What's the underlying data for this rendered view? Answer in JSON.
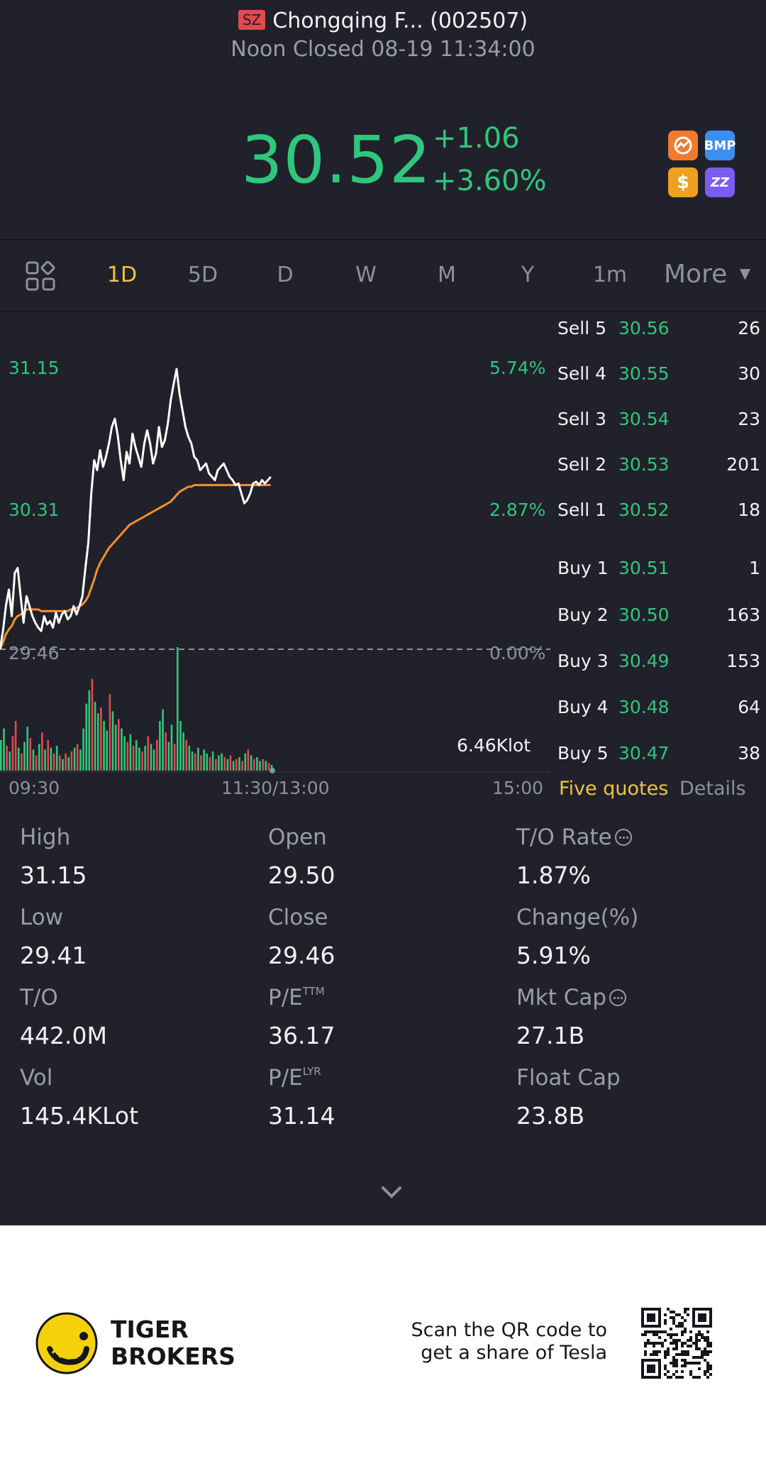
{
  "header": {
    "exchange_badge": "SZ",
    "title": "Chongqing F... (002507)",
    "status": "Noon Closed 08-19 11:34:00"
  },
  "quote": {
    "price": "30.52",
    "change": "+1.06",
    "change_pct": "+3.60%",
    "color_up": "#2fc77b",
    "badges": [
      {
        "name": "trend-badge-icon",
        "label": "",
        "color": "#f07a2e"
      },
      {
        "name": "bmp-badge-icon",
        "label": "BMP",
        "color": "#3b8ff0"
      },
      {
        "name": "dollar-badge-icon",
        "label": "$",
        "color": "#f0a020"
      },
      {
        "name": "zz-badge-icon",
        "label": "ZZ",
        "color": "#7b5cf0"
      }
    ]
  },
  "tabs": {
    "items": [
      "1D",
      "5D",
      "D",
      "W",
      "M",
      "Y",
      "1m"
    ],
    "more": "More",
    "active": "1D",
    "active_color": "#f0c33c"
  },
  "chart": {
    "y_left_top": "31.15",
    "y_left_mid": "30.31",
    "y_left_base": "29.46",
    "y_right_top": "5.74%",
    "y_right_mid": "2.87%",
    "y_right_base": "0.00%",
    "volume_label": "6.46Klot",
    "time_start": "09:30",
    "time_mid": "11:30/13:00",
    "time_end": "15:00"
  },
  "chart_data": {
    "type": "line",
    "title": "",
    "xlabel": "",
    "ylabel": "",
    "x_ticks": [
      "09:30",
      "11:30/13:00",
      "15:00"
    ],
    "ylim": [
      29.46,
      31.15
    ],
    "y_ticks": [
      29.46,
      30.31,
      31.15
    ],
    "y2_ticks": [
      "0.00%",
      "2.87%",
      "5.74%"
    ],
    "baseline": 29.46,
    "series": [
      {
        "name": "",
        "color": "#ffffff",
        "values": [
          29.46,
          29.57,
          29.72,
          29.82,
          29.66,
          29.92,
          29.95,
          29.78,
          29.62,
          29.78,
          29.72,
          29.66,
          29.62,
          29.59,
          29.57,
          29.66,
          29.61,
          29.63,
          29.59,
          29.68,
          29.62,
          29.67,
          29.69,
          29.64,
          29.66,
          29.72,
          29.67,
          29.72,
          29.78,
          29.95,
          30.1,
          30.4,
          30.6,
          30.54,
          30.66,
          30.56,
          30.62,
          30.7,
          30.8,
          30.85,
          30.75,
          30.6,
          30.48,
          30.65,
          30.58,
          30.76,
          30.68,
          30.62,
          30.56,
          30.7,
          30.78,
          30.7,
          30.58,
          30.64,
          30.8,
          30.68,
          30.72,
          30.82,
          30.96,
          31.06,
          31.15,
          31.0,
          30.9,
          30.8,
          30.74,
          30.7,
          30.62,
          30.6,
          30.54,
          30.56,
          30.58,
          30.52,
          30.5,
          30.48,
          30.54,
          30.56,
          30.58,
          30.54,
          30.5,
          30.48,
          30.45,
          30.46,
          30.4,
          30.34,
          30.36,
          30.4,
          30.46,
          30.47,
          30.45,
          30.48,
          30.46,
          30.48,
          30.5
        ]
      },
      {
        "name": "",
        "color": "#f5902a",
        "values": [
          29.46,
          29.5,
          29.55,
          29.58,
          29.6,
          29.64,
          29.66,
          29.67,
          29.68,
          29.7,
          29.7,
          29.7,
          29.7,
          29.7,
          29.69,
          29.69,
          29.69,
          29.69,
          29.69,
          29.69,
          29.69,
          29.69,
          29.69,
          29.69,
          29.7,
          29.7,
          29.71,
          29.72,
          29.73,
          29.75,
          29.78,
          29.83,
          29.88,
          29.94,
          29.98,
          30.01,
          30.04,
          30.07,
          30.09,
          30.11,
          30.13,
          30.15,
          30.17,
          30.19,
          30.21,
          30.22,
          30.23,
          30.24,
          30.25,
          30.26,
          30.27,
          30.28,
          30.29,
          30.3,
          30.31,
          30.32,
          30.33,
          30.34,
          30.35,
          30.37,
          30.39,
          30.41,
          30.42,
          30.43,
          30.44,
          30.44,
          30.45,
          30.45,
          30.45,
          30.45,
          30.45,
          30.45,
          30.45,
          30.45,
          30.45,
          30.45,
          30.45,
          30.45,
          30.45,
          30.45,
          30.45,
          30.45,
          30.45,
          30.45,
          30.45,
          30.45,
          30.45,
          30.45,
          30.45,
          30.45,
          30.45,
          30.45,
          30.45
        ]
      }
    ],
    "volume": {
      "unit": "Klot",
      "max": 6.46,
      "values": [
        1.6,
        2.2,
        1.3,
        1.0,
        1.8,
        2.6,
        1.2,
        0.9,
        1.5,
        2.3,
        1.7,
        1.1,
        0.8,
        1.4,
        2.0,
        1.1,
        1.6,
        1.2,
        0.9,
        1.3,
        0.8,
        0.6,
        0.9,
        0.7,
        1.0,
        1.2,
        1.4,
        1.1,
        2.2,
        3.5,
        4.2,
        4.8,
        3.6,
        3.0,
        3.3,
        2.6,
        2.1,
        4.0,
        3.1,
        2.4,
        2.7,
        2.2,
        1.8,
        1.5,
        1.9,
        1.3,
        1.6,
        1.2,
        1.0,
        1.3,
        1.8,
        1.4,
        1.1,
        1.6,
        2.6,
        3.2,
        2.0,
        1.5,
        2.4,
        1.4,
        6.46,
        2.6,
        2.0,
        1.6,
        1.3,
        1.0,
        0.9,
        1.2,
        0.8,
        1.1,
        0.9,
        0.7,
        1.0,
        0.6,
        0.8,
        0.9,
        0.7,
        0.6,
        0.8,
        0.5,
        0.6,
        0.7,
        0.5,
        0.9,
        1.1,
        0.8,
        0.6,
        0.7,
        0.5,
        0.6,
        0.5,
        0.4,
        0.3
      ],
      "colors": [
        "g",
        "g",
        "r",
        "g",
        "r",
        "r",
        "g",
        "r",
        "g",
        "g",
        "r",
        "g",
        "r",
        "g",
        "r",
        "g",
        "r",
        "g",
        "r",
        "g",
        "r",
        "g",
        "r",
        "g",
        "r",
        "g",
        "r",
        "g",
        "g",
        "g",
        "g",
        "r",
        "g",
        "g",
        "r",
        "g",
        "g",
        "r",
        "g",
        "g",
        "r",
        "g",
        "g",
        "r",
        "g",
        "r",
        "g",
        "g",
        "r",
        "g",
        "r",
        "g",
        "g",
        "r",
        "g",
        "g",
        "r",
        "g",
        "g",
        "r",
        "g",
        "g",
        "g",
        "r",
        "g",
        "g",
        "r",
        "g",
        "r",
        "g",
        "g",
        "r",
        "g",
        "r",
        "g",
        "g",
        "r",
        "g",
        "r",
        "g",
        "r",
        "g",
        "r",
        "g",
        "r",
        "g",
        "r",
        "g",
        "g",
        "r",
        "g",
        "r",
        "g"
      ]
    }
  },
  "order_book": {
    "sell": [
      {
        "side": "Sell 5",
        "price": "30.56",
        "qty": "26"
      },
      {
        "side": "Sell 4",
        "price": "30.55",
        "qty": "30"
      },
      {
        "side": "Sell 3",
        "price": "30.54",
        "qty": "23"
      },
      {
        "side": "Sell 2",
        "price": "30.53",
        "qty": "201"
      },
      {
        "side": "Sell 1",
        "price": "30.52",
        "qty": "18"
      }
    ],
    "buy": [
      {
        "side": "Buy 1",
        "price": "30.51",
        "qty": "1"
      },
      {
        "side": "Buy 2",
        "price": "30.50",
        "qty": "163"
      },
      {
        "side": "Buy 3",
        "price": "30.49",
        "qty": "153"
      },
      {
        "side": "Buy 4",
        "price": "30.48",
        "qty": "64"
      },
      {
        "side": "Buy 5",
        "price": "30.47",
        "qty": "38"
      }
    ],
    "tab_five_quotes": "Five quotes",
    "tab_details": "Details"
  },
  "stats": {
    "high_label": "High",
    "high": "31.15",
    "open_label": "Open",
    "open": "29.50",
    "to_rate_label": "T/O Rate",
    "to_rate": "1.87%",
    "low_label": "Low",
    "low": "29.41",
    "close_label": "Close",
    "close": "29.46",
    "change_label": "Change(%)",
    "change": "5.91%",
    "to_label": "T/O",
    "to": "442.0M",
    "pe_ttm_label": "P/E",
    "pe_ttm_sup": "TTM",
    "pe_ttm": "36.17",
    "mkt_cap_label": "Mkt Cap",
    "mkt_cap": "27.1B",
    "vol_label": "Vol",
    "vol": "145.4KLot",
    "pe_lyr_label": "P/E",
    "pe_lyr_sup": "LYR",
    "pe_lyr": "31.14",
    "float_cap_label": "Float Cap",
    "float_cap": "23.8B"
  },
  "footer": {
    "brand_line1": "TIGER",
    "brand_line2": "BROKERS",
    "scan_line1": "Scan the QR code to",
    "scan_line2": "get a share of Tesla"
  }
}
